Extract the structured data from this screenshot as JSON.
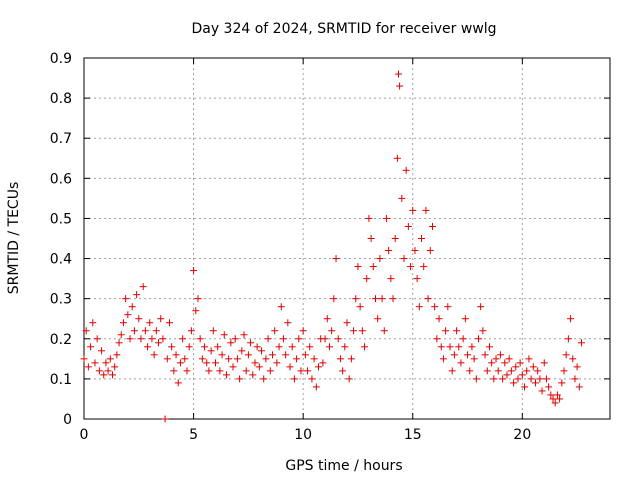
{
  "chart_data": {
    "type": "scatter",
    "title": "Day 324 of 2024, SRMTID for receiver wwlg",
    "xlabel": "GPS time / hours",
    "ylabel": "SRMTID / TECUs",
    "xlim": [
      0,
      24
    ],
    "ylim": [
      0,
      0.9
    ],
    "x_ticks": [
      0,
      5,
      10,
      15,
      20
    ],
    "x_tick_labels": [
      "0",
      "5",
      "10",
      "15",
      "20"
    ],
    "y_ticks": [
      0,
      0.1,
      0.2,
      0.3,
      0.4,
      0.5,
      0.6,
      0.7,
      0.8,
      0.9
    ],
    "y_tick_labels": [
      "0",
      "0.1",
      "0.2",
      "0.3",
      "0.4",
      "0.5",
      "0.6",
      "0.7",
      "0.8",
      "0.9"
    ],
    "grid": true,
    "marker": "+",
    "color": "#e00000",
    "series": [
      {
        "name": "SRMTID",
        "points": [
          [
            0.0,
            0.15
          ],
          [
            0.1,
            0.22
          ],
          [
            0.2,
            0.13
          ],
          [
            0.3,
            0.18
          ],
          [
            0.4,
            0.24
          ],
          [
            0.5,
            0.14
          ],
          [
            0.6,
            0.2
          ],
          [
            0.7,
            0.12
          ],
          [
            0.8,
            0.17
          ],
          [
            0.9,
            0.11
          ],
          [
            1.0,
            0.14
          ],
          [
            1.1,
            0.12
          ],
          [
            1.2,
            0.15
          ],
          [
            1.3,
            0.11
          ],
          [
            1.4,
            0.13
          ],
          [
            1.5,
            0.16
          ],
          [
            1.6,
            0.19
          ],
          [
            1.7,
            0.21
          ],
          [
            1.8,
            0.24
          ],
          [
            1.9,
            0.3
          ],
          [
            2.0,
            0.26
          ],
          [
            2.1,
            0.2
          ],
          [
            2.2,
            0.28
          ],
          [
            2.3,
            0.22
          ],
          [
            2.4,
            0.31
          ],
          [
            2.5,
            0.25
          ],
          [
            2.6,
            0.2
          ],
          [
            2.7,
            0.33
          ],
          [
            2.8,
            0.22
          ],
          [
            2.9,
            0.18
          ],
          [
            3.0,
            0.24
          ],
          [
            3.1,
            0.2
          ],
          [
            3.2,
            0.16
          ],
          [
            3.3,
            0.22
          ],
          [
            3.4,
            0.19
          ],
          [
            3.5,
            0.25
          ],
          [
            3.6,
            0.2
          ],
          [
            3.7,
            0.0
          ],
          [
            3.8,
            0.15
          ],
          [
            3.9,
            0.24
          ],
          [
            4.0,
            0.18
          ],
          [
            4.1,
            0.12
          ],
          [
            4.2,
            0.16
          ],
          [
            4.3,
            0.09
          ],
          [
            4.4,
            0.14
          ],
          [
            4.5,
            0.2
          ],
          [
            4.6,
            0.15
          ],
          [
            4.7,
            0.12
          ],
          [
            4.8,
            0.18
          ],
          [
            4.9,
            0.22
          ],
          [
            5.0,
            0.37
          ],
          [
            5.1,
            0.27
          ],
          [
            5.2,
            0.3
          ],
          [
            5.3,
            0.2
          ],
          [
            5.4,
            0.15
          ],
          [
            5.5,
            0.18
          ],
          [
            5.6,
            0.14
          ],
          [
            5.7,
            0.12
          ],
          [
            5.8,
            0.17
          ],
          [
            5.9,
            0.22
          ],
          [
            6.0,
            0.14
          ],
          [
            6.1,
            0.18
          ],
          [
            6.2,
            0.12
          ],
          [
            6.3,
            0.16
          ],
          [
            6.4,
            0.21
          ],
          [
            6.5,
            0.11
          ],
          [
            6.6,
            0.15
          ],
          [
            6.7,
            0.19
          ],
          [
            6.8,
            0.13
          ],
          [
            6.9,
            0.2
          ],
          [
            7.0,
            0.15
          ],
          [
            7.1,
            0.1
          ],
          [
            7.2,
            0.17
          ],
          [
            7.3,
            0.21
          ],
          [
            7.4,
            0.12
          ],
          [
            7.5,
            0.16
          ],
          [
            7.6,
            0.19
          ],
          [
            7.7,
            0.11
          ],
          [
            7.8,
            0.14
          ],
          [
            7.9,
            0.18
          ],
          [
            8.0,
            0.13
          ],
          [
            8.1,
            0.17
          ],
          [
            8.2,
            0.1
          ],
          [
            8.3,
            0.15
          ],
          [
            8.4,
            0.2
          ],
          [
            8.5,
            0.12
          ],
          [
            8.6,
            0.16
          ],
          [
            8.7,
            0.22
          ],
          [
            8.8,
            0.14
          ],
          [
            8.9,
            0.18
          ],
          [
            9.0,
            0.28
          ],
          [
            9.1,
            0.2
          ],
          [
            9.2,
            0.16
          ],
          [
            9.3,
            0.24
          ],
          [
            9.4,
            0.13
          ],
          [
            9.5,
            0.18
          ],
          [
            9.6,
            0.1
          ],
          [
            9.7,
            0.15
          ],
          [
            9.8,
            0.2
          ],
          [
            9.9,
            0.12
          ],
          [
            10.0,
            0.22
          ],
          [
            10.1,
            0.16
          ],
          [
            10.2,
            0.12
          ],
          [
            10.3,
            0.18
          ],
          [
            10.4,
            0.1
          ],
          [
            10.5,
            0.15
          ],
          [
            10.6,
            0.08
          ],
          [
            10.7,
            0.13
          ],
          [
            10.8,
            0.2
          ],
          [
            10.9,
            0.14
          ],
          [
            11.0,
            0.2
          ],
          [
            11.1,
            0.25
          ],
          [
            11.2,
            0.18
          ],
          [
            11.3,
            0.22
          ],
          [
            11.4,
            0.3
          ],
          [
            11.5,
            0.4
          ],
          [
            11.6,
            0.2
          ],
          [
            11.7,
            0.15
          ],
          [
            11.8,
            0.12
          ],
          [
            11.9,
            0.18
          ],
          [
            12.0,
            0.24
          ],
          [
            12.1,
            0.1
          ],
          [
            12.2,
            0.15
          ],
          [
            12.3,
            0.22
          ],
          [
            12.4,
            0.3
          ],
          [
            12.5,
            0.38
          ],
          [
            12.6,
            0.28
          ],
          [
            12.7,
            0.22
          ],
          [
            12.8,
            0.18
          ],
          [
            12.9,
            0.35
          ],
          [
            13.0,
            0.5
          ],
          [
            13.1,
            0.45
          ],
          [
            13.2,
            0.38
          ],
          [
            13.3,
            0.3
          ],
          [
            13.4,
            0.25
          ],
          [
            13.5,
            0.4
          ],
          [
            13.6,
            0.3
          ],
          [
            13.7,
            0.22
          ],
          [
            13.8,
            0.5
          ],
          [
            13.9,
            0.42
          ],
          [
            14.0,
            0.35
          ],
          [
            14.1,
            0.3
          ],
          [
            14.2,
            0.45
          ],
          [
            14.3,
            0.65
          ],
          [
            14.35,
            0.86
          ],
          [
            14.4,
            0.83
          ],
          [
            14.5,
            0.55
          ],
          [
            14.6,
            0.4
          ],
          [
            14.7,
            0.62
          ],
          [
            14.8,
            0.48
          ],
          [
            14.9,
            0.38
          ],
          [
            15.0,
            0.52
          ],
          [
            15.1,
            0.42
          ],
          [
            15.2,
            0.35
          ],
          [
            15.3,
            0.28
          ],
          [
            15.4,
            0.45
          ],
          [
            15.5,
            0.38
          ],
          [
            15.6,
            0.52
          ],
          [
            15.7,
            0.3
          ],
          [
            15.8,
            0.42
          ],
          [
            15.9,
            0.48
          ],
          [
            16.0,
            0.28
          ],
          [
            16.1,
            0.2
          ],
          [
            16.2,
            0.25
          ],
          [
            16.3,
            0.18
          ],
          [
            16.4,
            0.15
          ],
          [
            16.5,
            0.22
          ],
          [
            16.6,
            0.28
          ],
          [
            16.7,
            0.18
          ],
          [
            16.8,
            0.12
          ],
          [
            16.9,
            0.16
          ],
          [
            17.0,
            0.22
          ],
          [
            17.1,
            0.18
          ],
          [
            17.2,
            0.14
          ],
          [
            17.3,
            0.2
          ],
          [
            17.4,
            0.25
          ],
          [
            17.5,
            0.16
          ],
          [
            17.6,
            0.12
          ],
          [
            17.7,
            0.18
          ],
          [
            17.8,
            0.15
          ],
          [
            17.9,
            0.1
          ],
          [
            18.0,
            0.2
          ],
          [
            18.1,
            0.28
          ],
          [
            18.2,
            0.22
          ],
          [
            18.3,
            0.16
          ],
          [
            18.4,
            0.12
          ],
          [
            18.5,
            0.18
          ],
          [
            18.6,
            0.14
          ],
          [
            18.7,
            0.1
          ],
          [
            18.8,
            0.15
          ],
          [
            18.9,
            0.12
          ],
          [
            19.0,
            0.16
          ],
          [
            19.1,
            0.1
          ],
          [
            19.2,
            0.14
          ],
          [
            19.3,
            0.11
          ],
          [
            19.4,
            0.15
          ],
          [
            19.5,
            0.12
          ],
          [
            19.6,
            0.09
          ],
          [
            19.7,
            0.13
          ],
          [
            19.8,
            0.1
          ],
          [
            19.9,
            0.14
          ],
          [
            20.0,
            0.11
          ],
          [
            20.1,
            0.08
          ],
          [
            20.2,
            0.12
          ],
          [
            20.3,
            0.15
          ],
          [
            20.4,
            0.1
          ],
          [
            20.5,
            0.13
          ],
          [
            20.6,
            0.09
          ],
          [
            20.7,
            0.12
          ],
          [
            20.8,
            0.1
          ],
          [
            20.9,
            0.07
          ],
          [
            21.0,
            0.14
          ],
          [
            21.1,
            0.1
          ],
          [
            21.2,
            0.08
          ],
          [
            21.3,
            0.06
          ],
          [
            21.4,
            0.05
          ],
          [
            21.5,
            0.04
          ],
          [
            21.6,
            0.06
          ],
          [
            21.7,
            0.05
          ],
          [
            21.8,
            0.09
          ],
          [
            21.9,
            0.12
          ],
          [
            22.0,
            0.16
          ],
          [
            22.1,
            0.2
          ],
          [
            22.2,
            0.25
          ],
          [
            22.3,
            0.15
          ],
          [
            22.4,
            0.1
          ],
          [
            22.5,
            0.13
          ],
          [
            22.6,
            0.08
          ],
          [
            22.7,
            0.19
          ]
        ]
      }
    ]
  }
}
